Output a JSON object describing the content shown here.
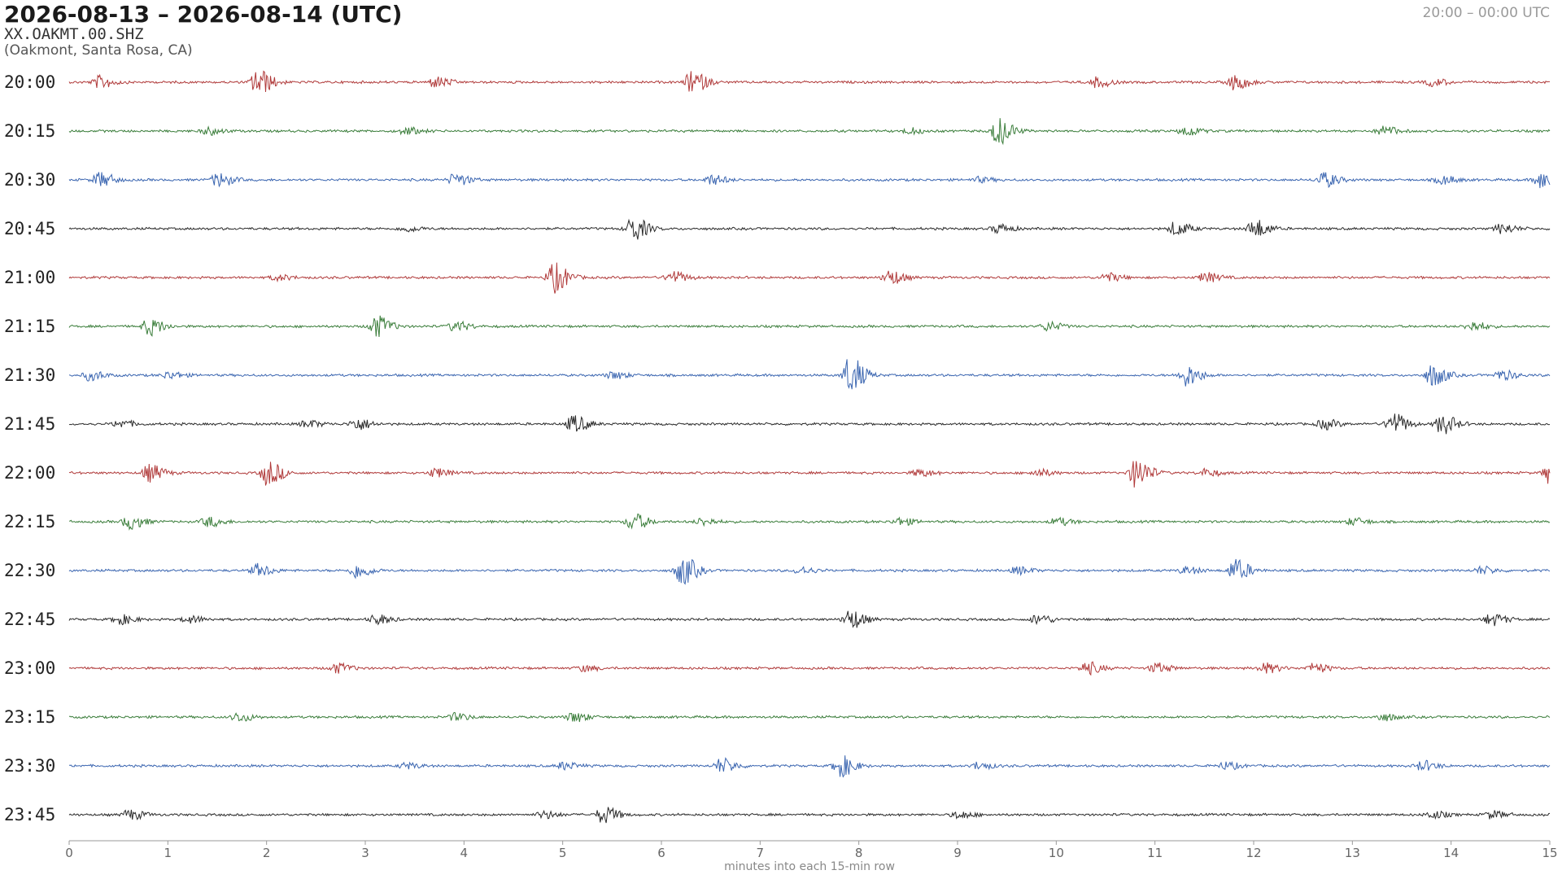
{
  "header": {
    "title": "2026-08-13 – 2026-08-14  (UTC)",
    "station": "XX.OAKMT.00.SHZ",
    "location": "(Oakmont, Santa Rosa, CA)",
    "time_range": "20:00 – 00:00 UTC"
  },
  "chart_data": {
    "type": "line",
    "subtype": "helicorder",
    "xlabel": "minutes into each 15-min row",
    "xlim": [
      0,
      15
    ],
    "x_ticks": [
      "0",
      "1",
      "2",
      "3",
      "4",
      "5",
      "6",
      "7",
      "8",
      "9",
      "10",
      "11",
      "12",
      "13",
      "14",
      "15"
    ],
    "row_colors": [
      "#b03a3a",
      "#3a7d3a",
      "#3a65b0",
      "#2a2a2a"
    ],
    "base_amplitude": 0.045,
    "rows": [
      {
        "label": "20:00",
        "events": [
          [
            1.9,
            0.55
          ],
          [
            3.7,
            0.22
          ],
          [
            6.3,
            0.45
          ],
          [
            10.4,
            0.2
          ],
          [
            11.8,
            0.3
          ],
          [
            13.8,
            0.15
          ],
          [
            0.3,
            0.25
          ]
        ]
      },
      {
        "label": "20:15",
        "events": [
          [
            9.4,
            0.55
          ],
          [
            8.5,
            0.12
          ],
          [
            11.3,
            0.2
          ],
          [
            13.3,
            0.2
          ],
          [
            1.4,
            0.15
          ],
          [
            3.4,
            0.15
          ]
        ]
      },
      {
        "label": "20:30",
        "events": [
          [
            0.3,
            0.3
          ],
          [
            1.5,
            0.28
          ],
          [
            3.9,
            0.25
          ],
          [
            6.5,
            0.2
          ],
          [
            9.2,
            0.1
          ],
          [
            12.7,
            0.3
          ],
          [
            13.9,
            0.18
          ],
          [
            14.9,
            0.35
          ]
        ]
      },
      {
        "label": "20:45",
        "events": [
          [
            5.7,
            0.5
          ],
          [
            12.0,
            0.38
          ],
          [
            11.2,
            0.28
          ],
          [
            9.4,
            0.18
          ],
          [
            3.4,
            0.12
          ],
          [
            14.5,
            0.2
          ]
        ]
      },
      {
        "label": "21:00",
        "events": [
          [
            4.9,
            0.62
          ],
          [
            6.1,
            0.25
          ],
          [
            8.3,
            0.3
          ],
          [
            10.5,
            0.18
          ],
          [
            11.5,
            0.2
          ],
          [
            2.1,
            0.12
          ]
        ]
      },
      {
        "label": "21:15",
        "events": [
          [
            3.1,
            0.45
          ],
          [
            0.8,
            0.35
          ],
          [
            3.9,
            0.2
          ],
          [
            9.9,
            0.18
          ],
          [
            14.2,
            0.2
          ]
        ]
      },
      {
        "label": "21:30",
        "events": [
          [
            7.9,
            0.75
          ],
          [
            11.3,
            0.45
          ],
          [
            13.8,
            0.45
          ],
          [
            0.2,
            0.2
          ],
          [
            1.0,
            0.15
          ],
          [
            5.5,
            0.15
          ],
          [
            14.5,
            0.2
          ]
        ]
      },
      {
        "label": "21:45",
        "events": [
          [
            5.1,
            0.35
          ],
          [
            13.4,
            0.45
          ],
          [
            13.9,
            0.4
          ],
          [
            0.5,
            0.15
          ],
          [
            2.4,
            0.15
          ],
          [
            2.9,
            0.25
          ],
          [
            12.7,
            0.2
          ]
        ]
      },
      {
        "label": "22:00",
        "events": [
          [
            2.0,
            0.5
          ],
          [
            10.8,
            0.6
          ],
          [
            15.0,
            0.55
          ],
          [
            0.8,
            0.35
          ],
          [
            3.7,
            0.18
          ],
          [
            8.6,
            0.15
          ],
          [
            9.8,
            0.15
          ],
          [
            11.5,
            0.15
          ]
        ]
      },
      {
        "label": "22:15",
        "events": [
          [
            5.7,
            0.35
          ],
          [
            0.6,
            0.3
          ],
          [
            1.4,
            0.2
          ],
          [
            6.4,
            0.15
          ],
          [
            8.4,
            0.15
          ],
          [
            10.0,
            0.15
          ],
          [
            13.0,
            0.15
          ]
        ]
      },
      {
        "label": "22:30",
        "events": [
          [
            6.2,
            0.6
          ],
          [
            11.8,
            0.45
          ],
          [
            1.9,
            0.25
          ],
          [
            2.9,
            0.3
          ],
          [
            7.4,
            0.15
          ],
          [
            9.6,
            0.15
          ],
          [
            11.3,
            0.15
          ],
          [
            14.3,
            0.15
          ]
        ]
      },
      {
        "label": "22:45",
        "events": [
          [
            7.9,
            0.4
          ],
          [
            0.5,
            0.2
          ],
          [
            3.1,
            0.2
          ],
          [
            9.8,
            0.2
          ],
          [
            14.4,
            0.25
          ],
          [
            1.2,
            0.15
          ]
        ]
      },
      {
        "label": "23:00",
        "events": [
          [
            10.3,
            0.25
          ],
          [
            11.0,
            0.2
          ],
          [
            12.1,
            0.2
          ],
          [
            12.6,
            0.2
          ],
          [
            2.7,
            0.2
          ],
          [
            5.2,
            0.12
          ]
        ]
      },
      {
        "label": "23:15",
        "events": [
          [
            1.7,
            0.18
          ],
          [
            3.9,
            0.15
          ],
          [
            5.1,
            0.2
          ],
          [
            13.3,
            0.15
          ]
        ]
      },
      {
        "label": "23:30",
        "events": [
          [
            7.8,
            0.45
          ],
          [
            6.6,
            0.3
          ],
          [
            5.0,
            0.15
          ],
          [
            3.4,
            0.12
          ],
          [
            13.7,
            0.2
          ],
          [
            9.2,
            0.15
          ],
          [
            11.7,
            0.15
          ]
        ]
      },
      {
        "label": "23:45",
        "events": [
          [
            5.4,
            0.35
          ],
          [
            0.6,
            0.2
          ],
          [
            9.0,
            0.15
          ],
          [
            13.8,
            0.15
          ],
          [
            4.8,
            0.15
          ],
          [
            14.4,
            0.15
          ]
        ]
      }
    ]
  }
}
